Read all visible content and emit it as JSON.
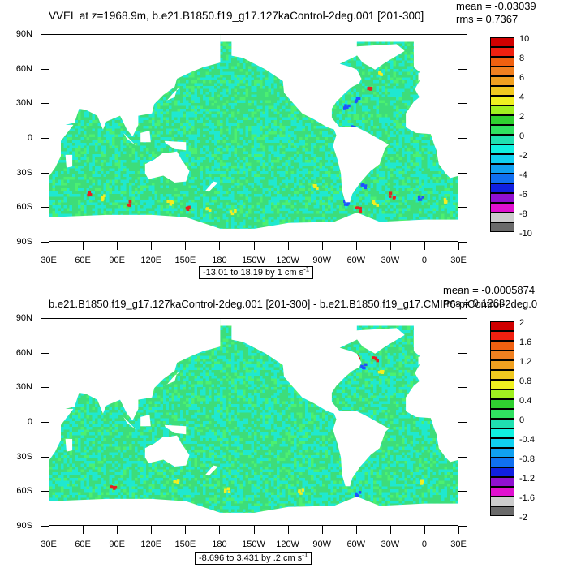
{
  "colors": {
    "ocean_base": "#3ddd7a",
    "ocean_alt": "#4cf070",
    "cyan": "#1fe8d0",
    "land": "#ffffff",
    "blue": "#2050ff",
    "yellow": "#f4ee20",
    "red": "#e52020",
    "palette": [
      "#6a6a6a",
      "#cccccc",
      "#e010d0",
      "#9010d0",
      "#1020e0",
      "#1070f0",
      "#10a0f0",
      "#10d0f0",
      "#10f0e0",
      "#20e0b0",
      "#30e060",
      "#30d030",
      "#a0f020",
      "#f0f020",
      "#f0c820",
      "#f0a020",
      "#f08020",
      "#f06010",
      "#f02010",
      "#d00000"
    ]
  },
  "lat_labels": [
    "90N",
    "60N",
    "30N",
    "0",
    "30S",
    "60S",
    "90S"
  ],
  "lon_labels": [
    "30E",
    "60E",
    "90E",
    "120E",
    "150E",
    "180",
    "150W",
    "120W",
    "90W",
    "60W",
    "30W",
    "0",
    "30E"
  ],
  "panel1": {
    "title": "VVEL at z=1968.9m, b.e21.B1850.f19_g17.127kaControl-2deg.001 [201-300]",
    "stat_mean": "mean = -0.03039",
    "stat_rms": "rms = 0.7367",
    "range_text": "-13.01 to 18.19 by 1 cm s",
    "range_unit_sup": "-1",
    "colorbar_labels": [
      "10",
      "8",
      "6",
      "4",
      "2",
      "0",
      "-2",
      "-4",
      "-6",
      "-8",
      "-10"
    ]
  },
  "panel2": {
    "title": "b.e21.B1850.f19_g17.127kaControl-2deg.001 [201-300] - b.e21.B1850.f19_g17.CMIP6-piControl-2deg.0",
    "stat_mean": "mean = -0.0005874",
    "stat_rms": "rms = 0.1268",
    "range_text": "-8.696 to 3.431 by .2 cm s",
    "range_unit_sup": "-1",
    "colorbar_labels": [
      "2",
      "1.6",
      "1.2",
      "0.8",
      "0.4",
      "0",
      "-0.4",
      "-0.8",
      "-1.2",
      "-1.6",
      "-2"
    ]
  }
}
